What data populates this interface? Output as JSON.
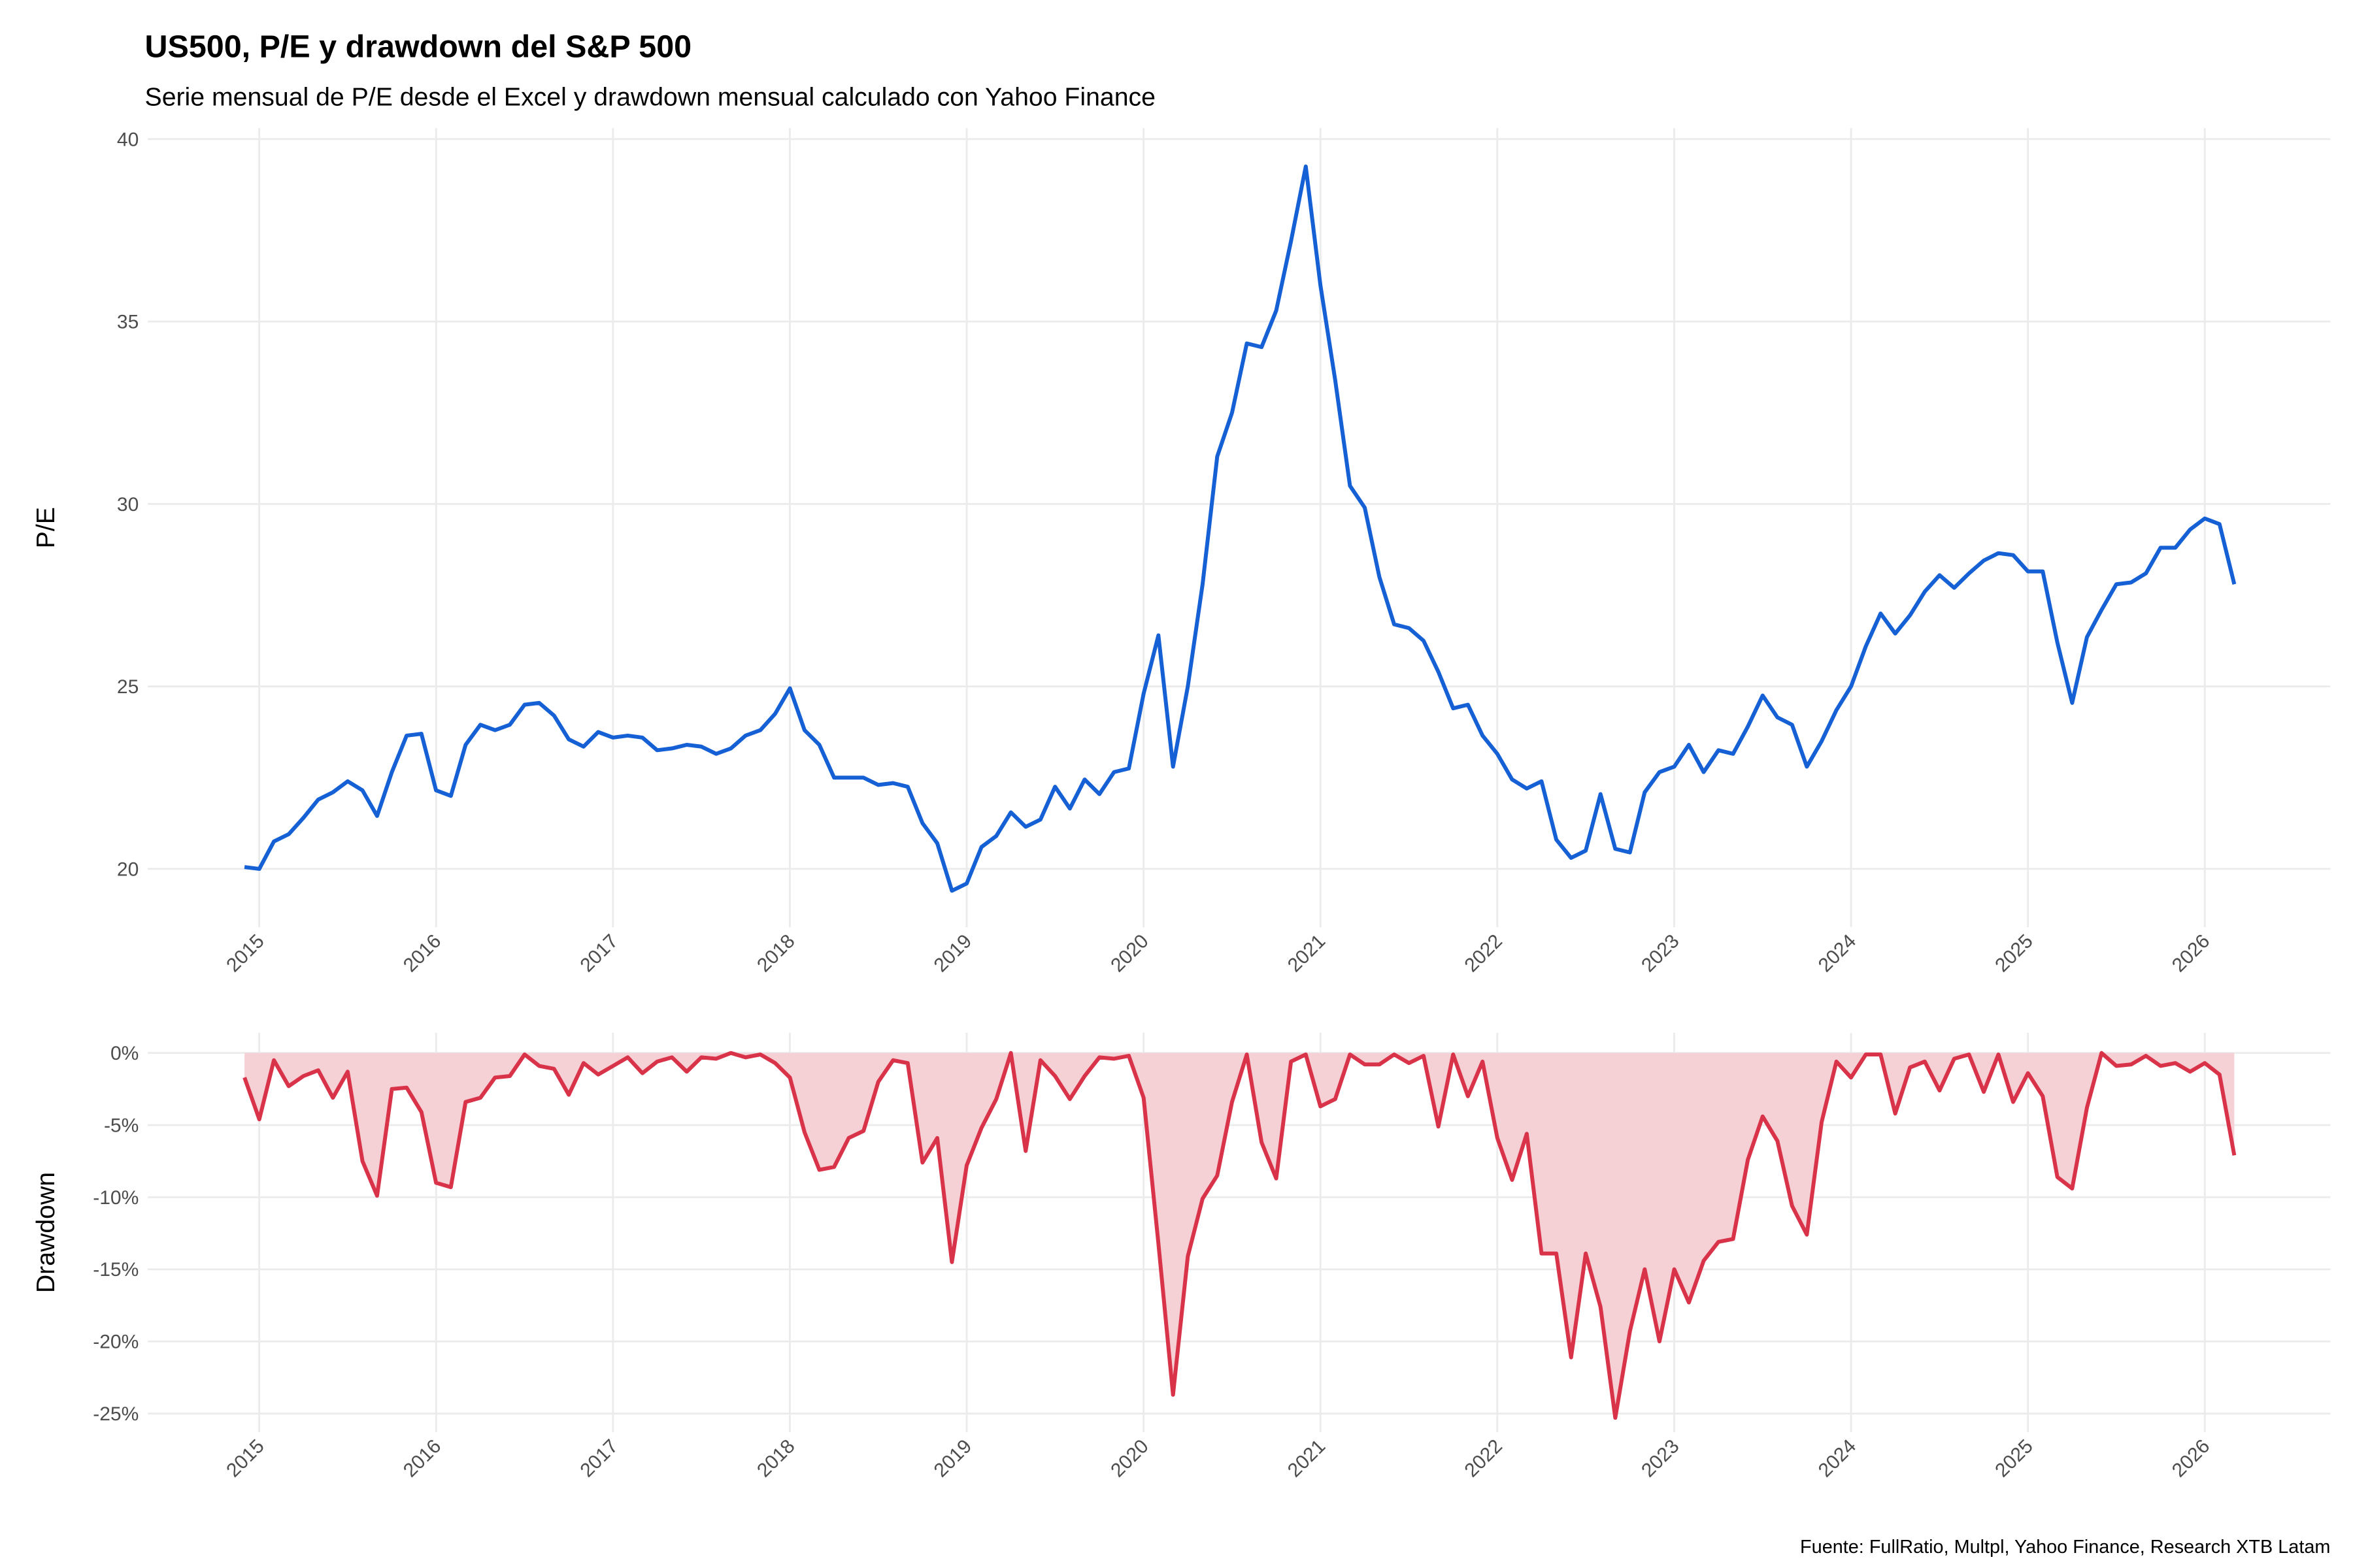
{
  "chart_data": [
    {
      "type": "line",
      "title": "US500, P/E y drawdown del S&P 500",
      "subtitle": "Serie mensual de P/E desde el Excel y drawdown mensual calculado con Yahoo Finance",
      "y_label": "P/E",
      "x": [
        "2014-12",
        "2015-01",
        "2015-02",
        "2015-03",
        "2015-04",
        "2015-05",
        "2015-06",
        "2015-07",
        "2015-08",
        "2015-09",
        "2015-10",
        "2015-11",
        "2015-12",
        "2016-01",
        "2016-02",
        "2016-03",
        "2016-04",
        "2016-05",
        "2016-06",
        "2016-07",
        "2016-08",
        "2016-09",
        "2016-10",
        "2016-11",
        "2016-12",
        "2017-01",
        "2017-02",
        "2017-03",
        "2017-04",
        "2017-05",
        "2017-06",
        "2017-07",
        "2017-08",
        "2017-09",
        "2017-10",
        "2017-11",
        "2017-12",
        "2018-01",
        "2018-02",
        "2018-03",
        "2018-04",
        "2018-05",
        "2018-06",
        "2018-07",
        "2018-08",
        "2018-09",
        "2018-10",
        "2018-11",
        "2018-12",
        "2019-01",
        "2019-02",
        "2019-03",
        "2019-04",
        "2019-05",
        "2019-06",
        "2019-07",
        "2019-08",
        "2019-09",
        "2019-10",
        "2019-11",
        "2019-12",
        "2020-01",
        "2020-02",
        "2020-03",
        "2020-04",
        "2020-05",
        "2020-06",
        "2020-07",
        "2020-08",
        "2020-09",
        "2020-10",
        "2020-11",
        "2020-12",
        "2021-01",
        "2021-02",
        "2021-03",
        "2021-04",
        "2021-05",
        "2021-06",
        "2021-07",
        "2021-08",
        "2021-09",
        "2021-10",
        "2021-11",
        "2021-12",
        "2022-01",
        "2022-02",
        "2022-03",
        "2022-04",
        "2022-05",
        "2022-06",
        "2022-07",
        "2022-08",
        "2022-09",
        "2022-10",
        "2022-11",
        "2022-12",
        "2023-01",
        "2023-02",
        "2023-03",
        "2023-04",
        "2023-05",
        "2023-06",
        "2023-07",
        "2023-08",
        "2023-09",
        "2023-10",
        "2023-11",
        "2023-12",
        "2024-01",
        "2024-02",
        "2024-03",
        "2024-04",
        "2024-05",
        "2024-06",
        "2024-07",
        "2024-08",
        "2024-09",
        "2024-10",
        "2024-11",
        "2024-12",
        "2025-01",
        "2025-02",
        "2025-03",
        "2025-04",
        "2025-05",
        "2025-06",
        "2025-07",
        "2025-08",
        "2025-09",
        "2025-10",
        "2025-11",
        "2025-12",
        "2026-01",
        "2026-02",
        "2026-03"
      ],
      "series": [
        {
          "name": "P/E",
          "color": "#1560d4",
          "values": [
            20.05,
            20.0,
            20.75,
            20.95,
            21.4,
            21.9,
            22.1,
            22.4,
            22.15,
            21.45,
            22.65,
            23.65,
            23.7,
            22.15,
            22.0,
            23.4,
            23.95,
            23.8,
            23.95,
            24.5,
            24.55,
            24.2,
            23.55,
            23.35,
            23.75,
            23.6,
            23.65,
            23.6,
            23.25,
            23.3,
            23.4,
            23.35,
            23.15,
            23.3,
            23.65,
            23.8,
            24.25,
            24.95,
            23.8,
            23.4,
            22.5,
            22.5,
            22.5,
            22.3,
            22.35,
            22.25,
            21.25,
            20.7,
            19.4,
            19.6,
            20.6,
            20.9,
            21.55,
            21.15,
            21.35,
            22.25,
            21.65,
            22.45,
            22.05,
            22.65,
            22.75,
            24.8,
            26.4,
            22.8,
            25.0,
            27.8,
            31.3,
            32.5,
            34.4,
            34.3,
            35.3,
            37.2,
            39.25,
            36.0,
            33.4,
            30.5,
            29.9,
            28.0,
            26.7,
            26.6,
            26.25,
            25.4,
            24.4,
            24.5,
            23.65,
            23.15,
            22.45,
            22.2,
            22.4,
            20.8,
            20.3,
            20.5,
            22.05,
            20.55,
            20.45,
            22.1,
            22.65,
            22.8,
            23.4,
            22.65,
            23.25,
            23.15,
            23.9,
            24.75,
            24.15,
            23.95,
            22.8,
            23.5,
            24.35,
            25.0,
            26.1,
            27.0,
            26.45,
            26.95,
            27.6,
            28.05,
            27.7,
            28.1,
            28.45,
            28.65,
            28.6,
            28.15,
            28.15,
            26.2,
            24.55,
            26.35,
            27.1,
            27.8,
            27.85,
            28.1,
            28.8,
            28.8,
            29.3,
            29.6,
            29.45,
            27.8
          ]
        }
      ],
      "xlim": [
        2014.37,
        2026.71
      ],
      "xticks": [
        2015,
        2016,
        2017,
        2018,
        2019,
        2020,
        2021,
        2022,
        2023,
        2024,
        2025,
        2026
      ],
      "ylim": [
        18.4,
        40.3
      ],
      "yticks": [
        20,
        25,
        30,
        35,
        40
      ],
      "grid": true
    },
    {
      "type": "area",
      "y_label": "Drawdown",
      "caption": "Fuente: FullRatio, Multpl, Yahoo Finance, Research XTB Latam",
      "x": [
        "2014-12",
        "2015-01",
        "2015-02",
        "2015-03",
        "2015-04",
        "2015-05",
        "2015-06",
        "2015-07",
        "2015-08",
        "2015-09",
        "2015-10",
        "2015-11",
        "2015-12",
        "2016-01",
        "2016-02",
        "2016-03",
        "2016-04",
        "2016-05",
        "2016-06",
        "2016-07",
        "2016-08",
        "2016-09",
        "2016-10",
        "2016-11",
        "2016-12",
        "2017-01",
        "2017-02",
        "2017-03",
        "2017-04",
        "2017-05",
        "2017-06",
        "2017-07",
        "2017-08",
        "2017-09",
        "2017-10",
        "2017-11",
        "2017-12",
        "2018-01",
        "2018-02",
        "2018-03",
        "2018-04",
        "2018-05",
        "2018-06",
        "2018-07",
        "2018-08",
        "2018-09",
        "2018-10",
        "2018-11",
        "2018-12",
        "2019-01",
        "2019-02",
        "2019-03",
        "2019-04",
        "2019-05",
        "2019-06",
        "2019-07",
        "2019-08",
        "2019-09",
        "2019-10",
        "2019-11",
        "2019-12",
        "2020-01",
        "2020-02",
        "2020-03",
        "2020-04",
        "2020-05",
        "2020-06",
        "2020-07",
        "2020-08",
        "2020-09",
        "2020-10",
        "2020-11",
        "2020-12",
        "2021-01",
        "2021-02",
        "2021-03",
        "2021-04",
        "2021-05",
        "2021-06",
        "2021-07",
        "2021-08",
        "2021-09",
        "2021-10",
        "2021-11",
        "2021-12",
        "2022-01",
        "2022-02",
        "2022-03",
        "2022-04",
        "2022-05",
        "2022-06",
        "2022-07",
        "2022-08",
        "2022-09",
        "2022-10",
        "2022-11",
        "2022-12",
        "2023-01",
        "2023-02",
        "2023-03",
        "2023-04",
        "2023-05",
        "2023-06",
        "2023-07",
        "2023-08",
        "2023-09",
        "2023-10",
        "2023-11",
        "2023-12",
        "2024-01",
        "2024-02",
        "2024-03",
        "2024-04",
        "2024-05",
        "2024-06",
        "2024-07",
        "2024-08",
        "2024-09",
        "2024-10",
        "2024-11",
        "2024-12",
        "2025-01",
        "2025-02",
        "2025-03",
        "2025-04",
        "2025-05",
        "2025-06",
        "2025-07",
        "2025-08",
        "2025-09",
        "2025-10",
        "2025-11",
        "2025-12",
        "2026-01",
        "2026-02",
        "2026-03"
      ],
      "series": [
        {
          "name": "Drawdown",
          "color": "#d9334a",
          "fill": "#f5d0d5",
          "values": [
            -1.7,
            -4.6,
            -0.5,
            -2.3,
            -1.6,
            -1.2,
            -3.1,
            -1.3,
            -7.5,
            -9.9,
            -2.5,
            -2.4,
            -4.1,
            -9.0,
            -9.3,
            -3.4,
            -3.1,
            -1.7,
            -1.6,
            -0.1,
            -0.9,
            -1.1,
            -2.9,
            -0.7,
            -1.5,
            -0.9,
            -0.3,
            -1.4,
            -0.6,
            -0.3,
            -1.3,
            -0.3,
            -0.4,
            0,
            -0.3,
            -0.1,
            -0.7,
            -1.7,
            -5.5,
            -8.1,
            -7.9,
            -5.9,
            -5.4,
            -2.0,
            -0.5,
            -0.7,
            -7.6,
            -5.9,
            -14.5,
            -7.8,
            -5.2,
            -3.2,
            0,
            -6.8,
            -0.5,
            -1.6,
            -3.2,
            -1.6,
            -0.3,
            -0.4,
            -0.2,
            -3.1,
            -13.2,
            -23.7,
            -14.1,
            -10.1,
            -8.5,
            -3.4,
            -0.1,
            -6.2,
            -8.7,
            -0.6,
            -0.1,
            -3.7,
            -3.2,
            -0.1,
            -0.8,
            -0.8,
            -0.1,
            -0.7,
            -0.2,
            -5.1,
            -0.1,
            -3.0,
            -0.6,
            -5.9,
            -8.8,
            -5.6,
            -13.9,
            -13.9,
            -21.1,
            -13.9,
            -17.6,
            -25.3,
            -19.3,
            -15.0,
            -20.0,
            -15.0,
            -17.3,
            -14.4,
            -13.1,
            -12.9,
            -7.4,
            -4.4,
            -6.1,
            -10.6,
            -12.6,
            -4.8,
            -0.6,
            -1.7,
            -0.1,
            -0.1,
            -4.2,
            -1.0,
            -0.6,
            -2.6,
            -0.4,
            -0.1,
            -2.7,
            -0.1,
            -3.4,
            -1.4,
            -3.0,
            -8.6,
            -9.4,
            -3.8,
            0,
            -0.9,
            -0.8,
            -0.2,
            -0.9,
            -0.7,
            -1.3,
            -0.7,
            -1.5,
            -7.1
          ]
        }
      ],
      "xlim": [
        2014.37,
        2026.71
      ],
      "xticks": [
        2015,
        2016,
        2017,
        2018,
        2019,
        2020,
        2021,
        2022,
        2023,
        2024,
        2025,
        2026
      ],
      "ylim": [
        -26.3,
        1.4
      ],
      "yticks": [
        {
          "value": 0,
          "label": "0%"
        },
        {
          "value": -5,
          "label": "-5%"
        },
        {
          "value": -10,
          "label": "-10%"
        },
        {
          "value": -15,
          "label": "-15%"
        },
        {
          "value": -20,
          "label": "-20%"
        },
        {
          "value": -25,
          "label": "-25%"
        }
      ],
      "grid": true
    }
  ]
}
